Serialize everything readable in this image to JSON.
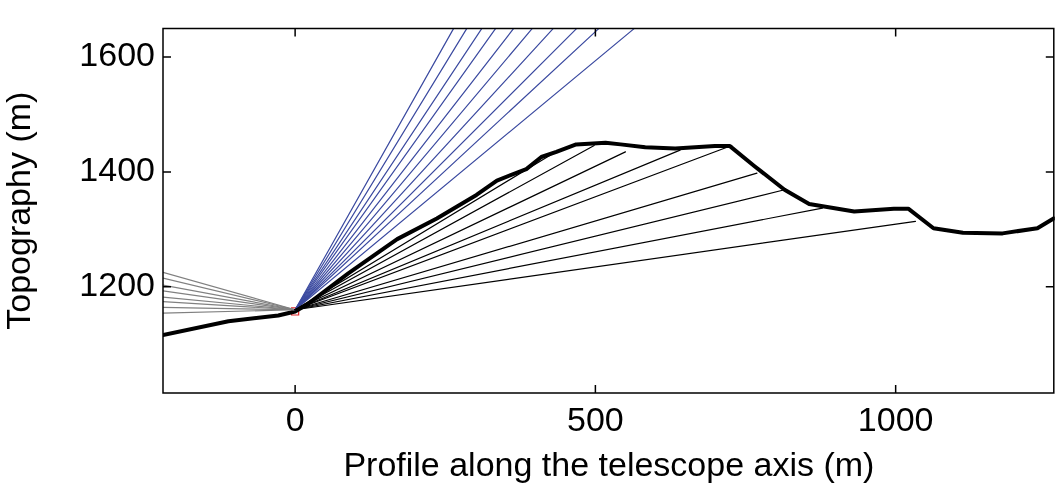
{
  "chart_data": {
    "type": "line",
    "xlabel": "Profile along the telescope axis (m)",
    "ylabel": "Topography (m)",
    "xlim": [
      -220,
      1265
    ],
    "xticks": [
      0,
      500,
      1000
    ],
    "ylim": [
      1015,
      1650
    ],
    "yticks": [
      1200,
      1400,
      1600
    ],
    "grid": false,
    "legend": false,
    "marker": "none",
    "line_style": "solid",
    "series": [
      {
        "color": "#000000",
        "x": [
          -220,
          -111,
          -28,
          0,
          21,
          88,
          170,
          236,
          302,
          336,
          385,
          410,
          435,
          468,
          517,
          542,
          583,
          633,
          699,
          724,
          765,
          815,
          856,
          931,
          997,
          1021,
          1063,
          1112,
          1178,
          1236,
          1263
        ],
        "values": [
          1116,
          1140,
          1150,
          1157,
          1170,
          1223,
          1283,
          1319,
          1360,
          1385,
          1405,
          1426,
          1435,
          1448,
          1451,
          1448,
          1443,
          1441,
          1445,
          1445,
          1410,
          1369,
          1344,
          1331,
          1336,
          1336,
          1302,
          1294,
          1293,
          1302,
          1319
        ]
      },
      {
        "color": "#000000",
        "x": [
          0,
          426
        ],
        "values": [
          1160,
          1430
        ]
      },
      {
        "color": "#000000",
        "x": [
          0,
          498
        ],
        "values": [
          1160,
          1446
        ]
      },
      {
        "color": "#000000",
        "x": [
          0,
          550
        ],
        "values": [
          1160,
          1435
        ]
      },
      {
        "color": "#000000",
        "x": [
          0,
          641
        ],
        "values": [
          1160,
          1438
        ]
      },
      {
        "color": "#000000",
        "x": [
          0,
          727
        ],
        "values": [
          1160,
          1446
        ]
      },
      {
        "color": "#000000",
        "x": [
          0,
          769
        ],
        "values": [
          1160,
          1398
        ]
      },
      {
        "color": "#000000",
        "x": [
          0,
          815
        ],
        "values": [
          1160,
          1369
        ]
      },
      {
        "color": "#000000",
        "x": [
          0,
          878
        ],
        "values": [
          1160,
          1337
        ]
      },
      {
        "color": "#000000",
        "x": [
          0,
          1033
        ],
        "values": [
          1160,
          1314
        ]
      },
      {
        "color": "#3b4aa0",
        "x": [
          0,
          264
        ],
        "values": [
          1160,
          1650
        ]
      },
      {
        "color": "#3b4aa0",
        "x": [
          0,
          286
        ],
        "values": [
          1160,
          1650
        ]
      },
      {
        "color": "#3b4aa0",
        "x": [
          0,
          311
        ],
        "values": [
          1160,
          1650
        ]
      },
      {
        "color": "#3b4aa0",
        "x": [
          0,
          334
        ],
        "values": [
          1160,
          1650
        ]
      },
      {
        "color": "#3b4aa0",
        "x": [
          0,
          364
        ],
        "values": [
          1160,
          1650
        ]
      },
      {
        "color": "#3b4aa0",
        "x": [
          0,
          395
        ],
        "values": [
          1160,
          1650
        ]
      },
      {
        "color": "#3b4aa0",
        "x": [
          0,
          430
        ],
        "values": [
          1160,
          1650
        ]
      },
      {
        "color": "#3b4aa0",
        "x": [
          0,
          469
        ],
        "values": [
          1160,
          1650
        ]
      },
      {
        "color": "#3b4aa0",
        "x": [
          0,
          506
        ],
        "values": [
          1160,
          1650
        ]
      },
      {
        "color": "#3b4aa0",
        "x": [
          0,
          565
        ],
        "values": [
          1160,
          1650
        ]
      },
      {
        "color": "#808080",
        "x": [
          0,
          -220
        ],
        "values": [
          1160,
          1225
        ]
      },
      {
        "color": "#808080",
        "x": [
          0,
          -220
        ],
        "values": [
          1160,
          1215
        ]
      },
      {
        "color": "#808080",
        "x": [
          0,
          -220
        ],
        "values": [
          1160,
          1203
        ]
      },
      {
        "color": "#808080",
        "x": [
          0,
          -220
        ],
        "values": [
          1160,
          1193
        ]
      },
      {
        "color": "#808080",
        "x": [
          0,
          -220
        ],
        "values": [
          1160,
          1182
        ]
      },
      {
        "color": "#808080",
        "x": [
          0,
          -220
        ],
        "values": [
          1160,
          1174
        ]
      },
      {
        "color": "#808080",
        "x": [
          0,
          -220
        ],
        "values": [
          1160,
          1164
        ]
      },
      {
        "color": "#808080",
        "x": [
          0,
          -220
        ],
        "values": [
          1160,
          1154
        ]
      },
      {
        "type": "scatter",
        "marker": "square",
        "color": "#e0262a",
        "x": [
          0
        ],
        "values": [
          1157
        ]
      }
    ]
  }
}
